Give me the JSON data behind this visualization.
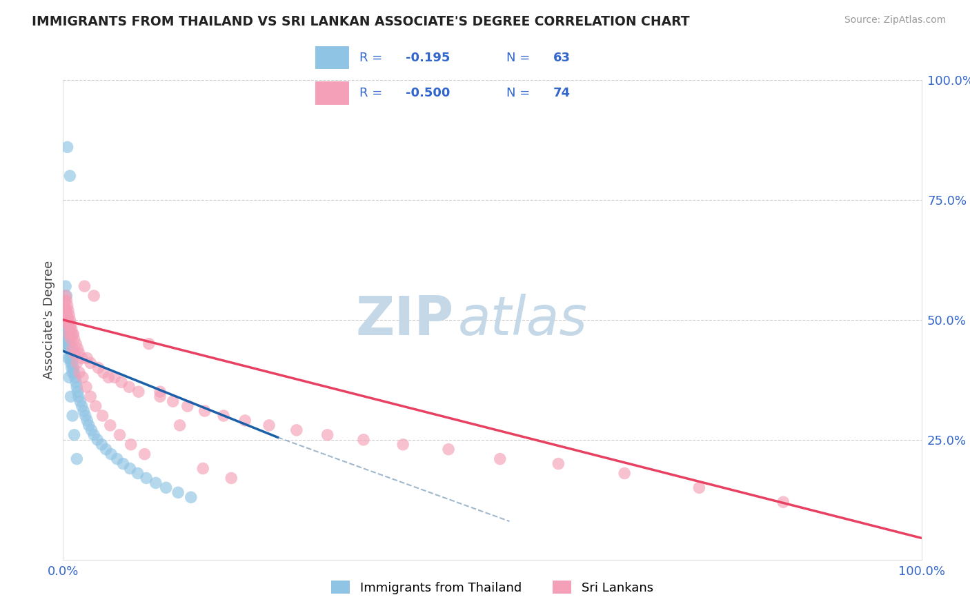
{
  "title": "IMMIGRANTS FROM THAILAND VS SRI LANKAN ASSOCIATE'S DEGREE CORRELATION CHART",
  "source": "Source: ZipAtlas.com",
  "ylabel": "Associate's Degree",
  "legend1_R": "-0.195",
  "legend1_N": "63",
  "legend2_R": "-0.500",
  "legend2_N": "74",
  "legend1_label": "Immigrants from Thailand",
  "legend2_label": "Sri Lankans",
  "color_blue": "#90c4e4",
  "color_pink": "#f4a0b8",
  "color_trendline_blue": "#1a5fa8",
  "color_trendline_pink": "#e84060",
  "color_dashed": "#a0b8cc",
  "watermark_zip": "ZIP",
  "watermark_atlas": "atlas",
  "watermark_color": "#c5d8e8",
  "title_color": "#222222",
  "legend_text_color": "#3366cc",
  "legend_R_label_color": "#222222",
  "tick_color": "#3366cc",
  "grid_color": "#cccccc",
  "xlim": [
    0.0,
    1.0
  ],
  "ylim": [
    0.0,
    1.0
  ],
  "blue_x": [
    0.005,
    0.008,
    0.002,
    0.002,
    0.003,
    0.003,
    0.003,
    0.004,
    0.004,
    0.004,
    0.005,
    0.005,
    0.005,
    0.006,
    0.006,
    0.006,
    0.007,
    0.007,
    0.008,
    0.008,
    0.009,
    0.009,
    0.01,
    0.01,
    0.011,
    0.011,
    0.012,
    0.013,
    0.014,
    0.015,
    0.016,
    0.017,
    0.018,
    0.02,
    0.022,
    0.024,
    0.026,
    0.028,
    0.03,
    0.033,
    0.036,
    0.04,
    0.045,
    0.05,
    0.056,
    0.063,
    0.07,
    0.078,
    0.087,
    0.097,
    0.108,
    0.12,
    0.134,
    0.149,
    0.003,
    0.004,
    0.005,
    0.006,
    0.007,
    0.009,
    0.011,
    0.013,
    0.016
  ],
  "blue_y": [
    0.86,
    0.8,
    0.48,
    0.46,
    0.5,
    0.48,
    0.46,
    0.5,
    0.48,
    0.46,
    0.49,
    0.47,
    0.45,
    0.48,
    0.46,
    0.44,
    0.47,
    0.45,
    0.44,
    0.42,
    0.43,
    0.41,
    0.42,
    0.4,
    0.41,
    0.39,
    0.4,
    0.39,
    0.38,
    0.37,
    0.36,
    0.35,
    0.34,
    0.33,
    0.32,
    0.31,
    0.3,
    0.29,
    0.28,
    0.27,
    0.26,
    0.25,
    0.24,
    0.23,
    0.22,
    0.21,
    0.2,
    0.19,
    0.18,
    0.17,
    0.16,
    0.15,
    0.14,
    0.13,
    0.57,
    0.55,
    0.45,
    0.42,
    0.38,
    0.34,
    0.3,
    0.26,
    0.21
  ],
  "pink_x": [
    0.002,
    0.003,
    0.003,
    0.004,
    0.004,
    0.005,
    0.005,
    0.006,
    0.006,
    0.007,
    0.007,
    0.008,
    0.008,
    0.009,
    0.01,
    0.011,
    0.012,
    0.013,
    0.015,
    0.017,
    0.019,
    0.022,
    0.025,
    0.028,
    0.032,
    0.036,
    0.041,
    0.047,
    0.053,
    0.06,
    0.068,
    0.077,
    0.088,
    0.1,
    0.113,
    0.128,
    0.145,
    0.165,
    0.187,
    0.212,
    0.24,
    0.272,
    0.308,
    0.35,
    0.396,
    0.449,
    0.509,
    0.577,
    0.654,
    0.741,
    0.839,
    0.003,
    0.004,
    0.005,
    0.006,
    0.007,
    0.009,
    0.011,
    0.013,
    0.016,
    0.019,
    0.023,
    0.027,
    0.032,
    0.038,
    0.046,
    0.055,
    0.066,
    0.079,
    0.095,
    0.113,
    0.136,
    0.163,
    0.196
  ],
  "pink_y": [
    0.54,
    0.55,
    0.52,
    0.54,
    0.51,
    0.53,
    0.5,
    0.52,
    0.5,
    0.51,
    0.49,
    0.5,
    0.48,
    0.49,
    0.48,
    0.47,
    0.47,
    0.46,
    0.45,
    0.44,
    0.43,
    0.42,
    0.57,
    0.42,
    0.41,
    0.55,
    0.4,
    0.39,
    0.38,
    0.38,
    0.37,
    0.36,
    0.35,
    0.45,
    0.34,
    0.33,
    0.32,
    0.31,
    0.3,
    0.29,
    0.28,
    0.27,
    0.26,
    0.25,
    0.24,
    0.23,
    0.21,
    0.2,
    0.18,
    0.15,
    0.12,
    0.52,
    0.51,
    0.5,
    0.49,
    0.47,
    0.46,
    0.44,
    0.43,
    0.41,
    0.39,
    0.38,
    0.36,
    0.34,
    0.32,
    0.3,
    0.28,
    0.26,
    0.24,
    0.22,
    0.35,
    0.28,
    0.19,
    0.17
  ],
  "blue_trend_x": [
    0.0,
    0.25
  ],
  "blue_trend_y": [
    0.435,
    0.255
  ],
  "pink_trend_x": [
    0.0,
    1.0
  ],
  "pink_trend_y": [
    0.5,
    0.045
  ],
  "dash_trend_x": [
    0.25,
    0.52
  ],
  "dash_trend_y": [
    0.255,
    0.08
  ]
}
